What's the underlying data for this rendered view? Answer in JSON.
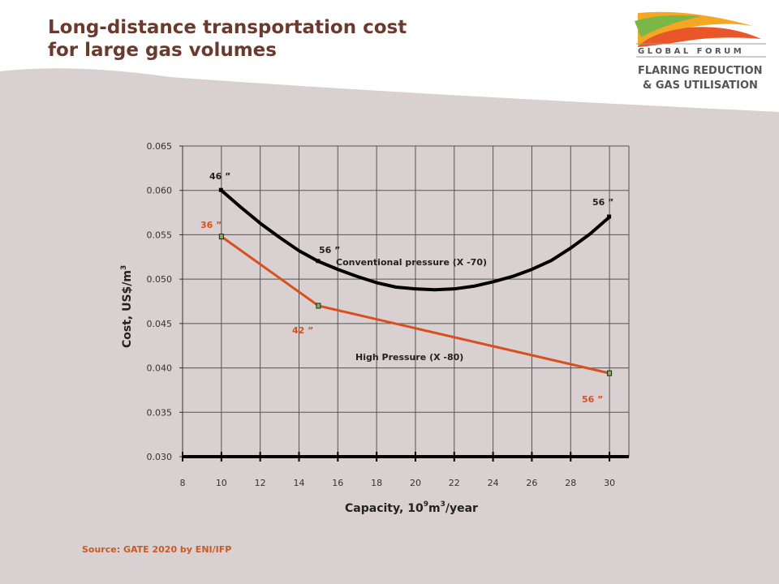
{
  "title": {
    "line1": "Long-distance transportation cost",
    "line2": "for large gas volumes"
  },
  "logo": {
    "line1": "G L O B A L   F O R U M",
    "line2": "FLARING REDUCTION",
    "line3": "& GAS UTILISATION",
    "colors": [
      "#7ab648",
      "#f5a623",
      "#e8562a"
    ]
  },
  "source": "Source: GATE 2020  by ENI/IFP",
  "colors": {
    "title": "#6b3a2e",
    "backdrop": "#d8d0d1",
    "conventional": "#000000",
    "high_pressure": "#d9501e",
    "marker_fill": "#7ab648"
  },
  "chart_data": {
    "type": "line",
    "xlabel_main": "Capacity, 10",
    "xlabel_sup1": "9",
    "xlabel_mid": "m",
    "xlabel_sup2": "3",
    "xlabel_end": "/year",
    "ylabel": "Cost, US$/m",
    "ylabel_sup": "3",
    "xlim": [
      8,
      31
    ],
    "ylim": [
      0.03,
      0.065
    ],
    "x_ticks": [
      "8",
      "10",
      "12",
      "14",
      "16",
      "18",
      "20",
      "22",
      "24",
      "26",
      "28",
      "30"
    ],
    "y_ticks": [
      "0.030",
      "0.035",
      "0.040",
      "0.045",
      "0.050",
      "0.055",
      "0.060",
      "0.065"
    ],
    "grid": "vertical and horizontal",
    "series": [
      {
        "name": "Conventional pressure (X -70)",
        "x": [
          10,
          11,
          12,
          13,
          14,
          15,
          16,
          17,
          18,
          19,
          20,
          21,
          22,
          23,
          24,
          25,
          26,
          27,
          28,
          29,
          30
        ],
        "y": [
          0.06,
          0.0581,
          0.0563,
          0.0547,
          0.0532,
          0.052,
          0.0511,
          0.0503,
          0.0496,
          0.0491,
          0.0489,
          0.0488,
          0.0489,
          0.0492,
          0.0497,
          0.0503,
          0.0511,
          0.0521,
          0.0535,
          0.0551,
          0.057
        ]
      },
      {
        "name": "High Pressure (X -80)",
        "x": [
          10,
          15,
          30
        ],
        "y": [
          0.0548,
          0.047,
          0.0394
        ]
      }
    ],
    "annotations": [
      {
        "text": "46 ”",
        "series": 0
      },
      {
        "text": "56 ”",
        "series": 0
      },
      {
        "text": "56 ”",
        "series": 0
      },
      {
        "text": "36 ”",
        "series": 1
      },
      {
        "text": "42 ”",
        "series": 1
      },
      {
        "text": "56 ”",
        "series": 1
      }
    ]
  }
}
